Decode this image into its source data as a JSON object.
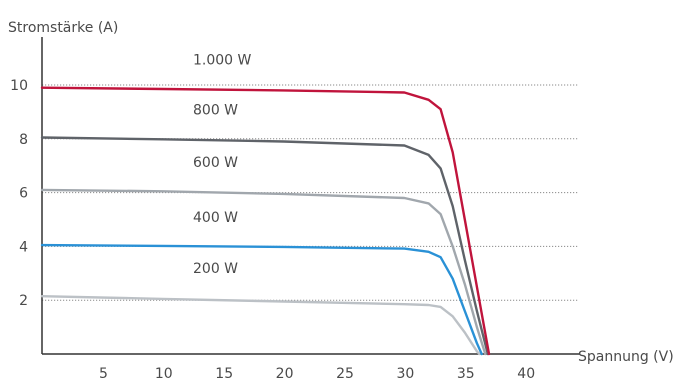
{
  "chart_data": {
    "type": "line",
    "xlabel": "Spannung (V)",
    "ylabel": "Stromstärke (A)",
    "xlim": [
      0,
      45
    ],
    "ylim": [
      0,
      12
    ],
    "x_ticks": [
      5,
      10,
      15,
      20,
      25,
      30,
      35,
      40
    ],
    "y_ticks": [
      2,
      4,
      6,
      8,
      10
    ],
    "grid": "horizontal dotted",
    "series": [
      {
        "name": "1.000 W",
        "color": "#c0143c",
        "points": [
          [
            0,
            9.9
          ],
          [
            10,
            9.85
          ],
          [
            20,
            9.8
          ],
          [
            30,
            9.72
          ],
          [
            32,
            9.45
          ],
          [
            33,
            9.1
          ],
          [
            34,
            7.5
          ],
          [
            35,
            5.0
          ],
          [
            36,
            2.5
          ],
          [
            37,
            0.0
          ]
        ]
      },
      {
        "name": "800 W",
        "color": "#5f6369",
        "points": [
          [
            0,
            8.05
          ],
          [
            10,
            7.98
          ],
          [
            20,
            7.9
          ],
          [
            30,
            7.75
          ],
          [
            32,
            7.4
          ],
          [
            33,
            6.9
          ],
          [
            34,
            5.5
          ],
          [
            35,
            3.5
          ],
          [
            36,
            1.6
          ],
          [
            36.9,
            0.0
          ]
        ]
      },
      {
        "name": "600 W",
        "color": "#a1a7ad",
        "points": [
          [
            0,
            6.1
          ],
          [
            10,
            6.05
          ],
          [
            20,
            5.95
          ],
          [
            30,
            5.8
          ],
          [
            32,
            5.6
          ],
          [
            33,
            5.2
          ],
          [
            34,
            4.0
          ],
          [
            35,
            2.6
          ],
          [
            36,
            1.0
          ],
          [
            36.7,
            0.0
          ]
        ]
      },
      {
        "name": "400 W",
        "color": "#2a91d6",
        "points": [
          [
            0,
            4.05
          ],
          [
            10,
            4.02
          ],
          [
            20,
            3.98
          ],
          [
            30,
            3.92
          ],
          [
            32,
            3.8
          ],
          [
            33,
            3.6
          ],
          [
            34,
            2.8
          ],
          [
            35,
            1.6
          ],
          [
            36,
            0.4
          ],
          [
            36.4,
            0.0
          ]
        ]
      },
      {
        "name": "200 W",
        "color": "#bcc1c6",
        "points": [
          [
            0,
            2.15
          ],
          [
            10,
            2.05
          ],
          [
            20,
            1.95
          ],
          [
            30,
            1.85
          ],
          [
            32,
            1.82
          ],
          [
            33,
            1.75
          ],
          [
            34,
            1.4
          ],
          [
            35,
            0.8
          ],
          [
            36,
            0.1
          ],
          [
            36.2,
            0.0
          ]
        ]
      }
    ]
  }
}
